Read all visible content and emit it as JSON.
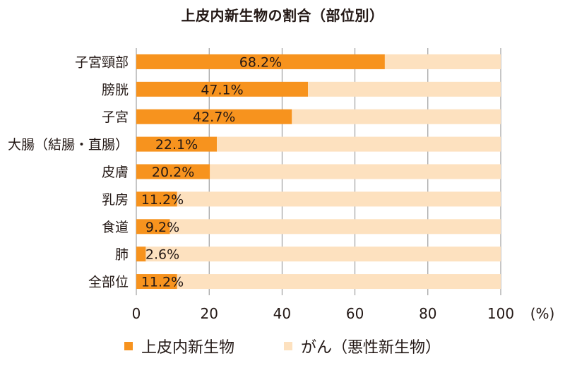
{
  "chart_data": {
    "type": "bar",
    "orientation": "horizontal",
    "stacked": true,
    "title": "上皮内新生物の割合（部位別）",
    "categories": [
      "子宮頸部",
      "膀胱",
      "子宮",
      "大腸（結腸・直腸）",
      "皮膚",
      "乳房",
      "食道",
      "肺",
      "全部位"
    ],
    "series": [
      {
        "name": "上皮内新生物",
        "values": [
          68.2,
          47.1,
          42.7,
          22.1,
          20.2,
          11.2,
          9.2,
          2.6,
          11.2
        ],
        "color": "#f7931e"
      },
      {
        "name": "がん（悪性新生物）",
        "values": [
          31.8,
          52.9,
          57.3,
          77.9,
          79.8,
          88.8,
          90.8,
          97.4,
          88.8
        ],
        "color": "#fde1bf"
      }
    ],
    "data_labels": [
      "68.2%",
      "47.1%",
      "42.7%",
      "22.1%",
      "20.2%",
      "11.2%",
      "9.2%",
      "2.6%",
      "11.2%"
    ],
    "x_ticks": [
      "0",
      "20",
      "40",
      "60",
      "80",
      "100"
    ],
    "x_unit": "(%)",
    "xlim": [
      0,
      100
    ],
    "grid": true,
    "legend_position": "bottom"
  }
}
